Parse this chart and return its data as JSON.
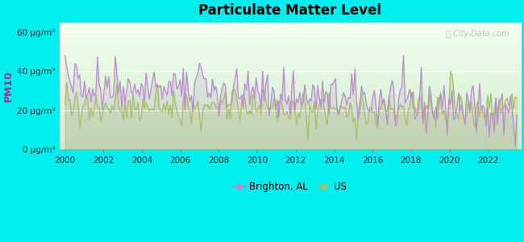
{
  "title": "Particulate Matter Level",
  "ylabel": "PM10",
  "ytick_labels": [
    "0 μg/m³",
    "20 μg/m³",
    "40 μg/m³",
    "60 μg/m³"
  ],
  "ytick_values": [
    0,
    20,
    40,
    60
  ],
  "xlim": [
    1999.7,
    2023.7
  ],
  "ylim": [
    0,
    65
  ],
  "background_color": "#00EEEE",
  "brighton_color": "#BB88CC",
  "us_color": "#AABB66",
  "legend_brighton": "Brighton, AL",
  "legend_us": "US",
  "watermark": "City-Data.com",
  "n_points": 280,
  "start_year": 2000.0,
  "end_year": 2023.5
}
